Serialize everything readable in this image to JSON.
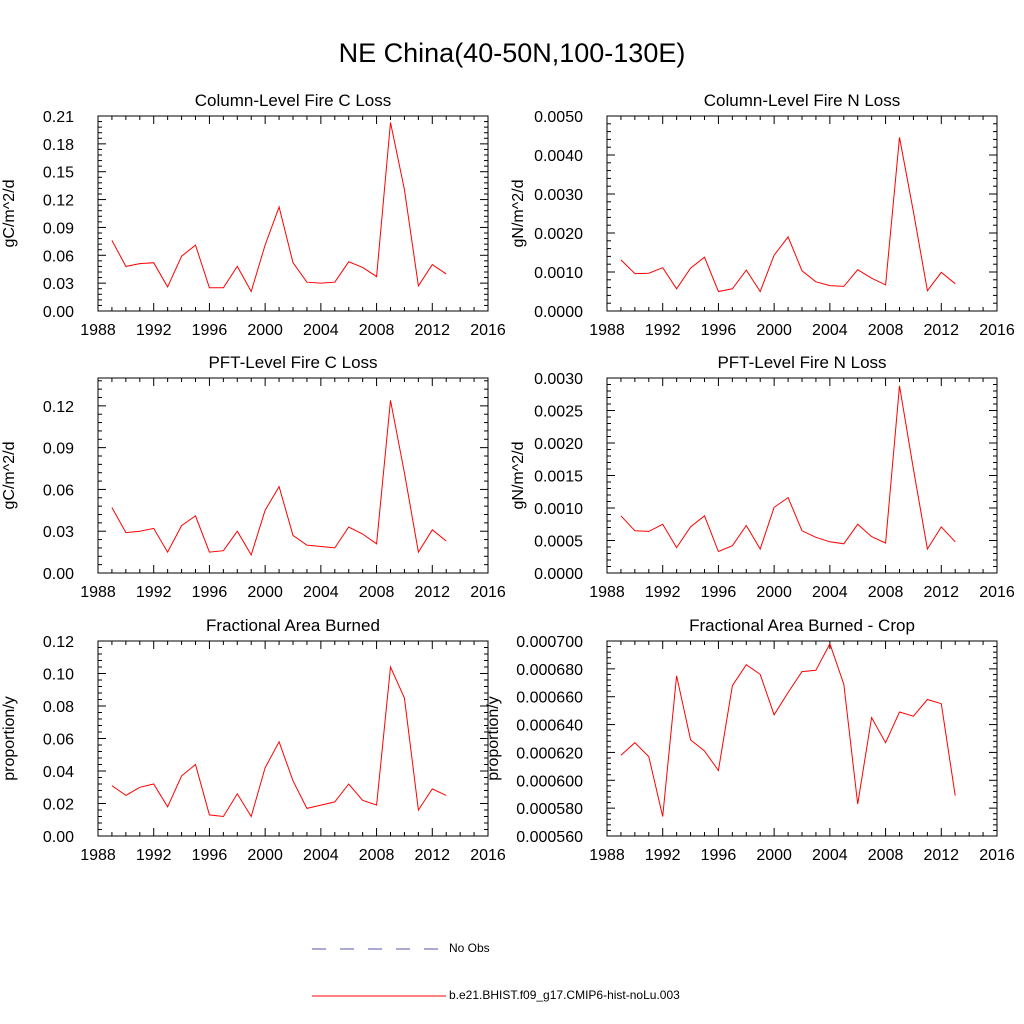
{
  "title": "NE China(40-50N,100-130E)",
  "colors": {
    "model": "#ff0000",
    "obs": "#5555aa",
    "axis": "#000000"
  },
  "legend": [
    {
      "label": "No Obs",
      "style": "dashed",
      "color": "#5555aa"
    },
    {
      "label": "b.e21.BHIST.f09_g17.CMIP6-hist-noLu.003",
      "style": "solid",
      "color": "#ff0000"
    }
  ],
  "chart_data": [
    {
      "type": "line",
      "title": "Column-Level Fire C Loss",
      "ylabel": "gC/m^2/d",
      "xlim": [
        1988,
        2016
      ],
      "xticks": [
        "1988",
        "1992",
        "1996",
        "2000",
        "2004",
        "2008",
        "2012",
        "2016"
      ],
      "ylim": [
        0,
        0.21
      ],
      "yticks": [
        "0.00",
        "0.03",
        "0.06",
        "0.09",
        "0.12",
        "0.15",
        "0.18",
        "0.21"
      ],
      "series": [
        {
          "name": "b.e21.BHIST.f09_g17.CMIP6-hist-noLu.003",
          "x": [
            1989,
            1990,
            1991,
            1992,
            1993,
            1994,
            1995,
            1996,
            1997,
            1998,
            1999,
            2000,
            2001,
            2002,
            2003,
            2004,
            2005,
            2006,
            2007,
            2008,
            2009,
            2010,
            2011,
            2012,
            2013
          ],
          "y": [
            0.076,
            0.048,
            0.051,
            0.052,
            0.026,
            0.059,
            0.071,
            0.025,
            0.025,
            0.048,
            0.021,
            0.071,
            0.112,
            0.052,
            0.031,
            0.03,
            0.031,
            0.053,
            0.047,
            0.037,
            0.203,
            0.131,
            0.027,
            0.05,
            0.04
          ]
        }
      ]
    },
    {
      "type": "line",
      "title": "Column-Level Fire N Loss",
      "ylabel": "gN/m^2/d",
      "xlim": [
        1988,
        2016
      ],
      "xticks": [
        "1988",
        "1992",
        "1996",
        "2000",
        "2004",
        "2008",
        "2012",
        "2016"
      ],
      "ylim": [
        0,
        0.005
      ],
      "yticks": [
        "0.0000",
        "0.0010",
        "0.0020",
        "0.0030",
        "0.0040",
        "0.0050"
      ],
      "series": [
        {
          "name": "b.e21.BHIST.f09_g17.CMIP6-hist-noLu.003",
          "x": [
            1989,
            1990,
            1991,
            1992,
            1993,
            1994,
            1995,
            1996,
            1997,
            1998,
            1999,
            2000,
            2001,
            2002,
            2003,
            2004,
            2005,
            2006,
            2007,
            2008,
            2009,
            2010,
            2011,
            2012,
            2013
          ],
          "y": [
            0.00131,
            0.00096,
            0.00097,
            0.00111,
            0.00057,
            0.0011,
            0.00138,
            0.0005,
            0.00057,
            0.00105,
            0.0005,
            0.00143,
            0.0019,
            0.00103,
            0.00075,
            0.00065,
            0.00063,
            0.00106,
            0.00084,
            0.00067,
            0.00445,
            0.00255,
            0.00052,
            0.00099,
            0.0007
          ]
        }
      ]
    },
    {
      "type": "line",
      "title": "PFT-Level Fire C Loss",
      "ylabel": "gC/m^2/d",
      "xlim": [
        1988,
        2016
      ],
      "xticks": [
        "1988",
        "1992",
        "1996",
        "2000",
        "2004",
        "2008",
        "2012",
        "2016"
      ],
      "ylim": [
        0,
        0.14
      ],
      "yticks": [
        "0.00",
        "0.03",
        "0.06",
        "0.09",
        "0.12"
      ],
      "series": [
        {
          "name": "b.e21.BHIST.f09_g17.CMIP6-hist-noLu.003",
          "x": [
            1989,
            1990,
            1991,
            1992,
            1993,
            1994,
            1995,
            1996,
            1997,
            1998,
            1999,
            2000,
            2001,
            2002,
            2003,
            2004,
            2005,
            2006,
            2007,
            2008,
            2009,
            2010,
            2011,
            2012,
            2013
          ],
          "y": [
            0.047,
            0.029,
            0.03,
            0.032,
            0.015,
            0.034,
            0.041,
            0.015,
            0.016,
            0.03,
            0.013,
            0.045,
            0.062,
            0.027,
            0.02,
            0.019,
            0.018,
            0.033,
            0.028,
            0.021,
            0.124,
            0.072,
            0.015,
            0.031,
            0.023
          ]
        }
      ]
    },
    {
      "type": "line",
      "title": "PFT-Level Fire N Loss",
      "ylabel": "gN/m^2/d",
      "xlim": [
        1988,
        2016
      ],
      "xticks": [
        "1988",
        "1992",
        "1996",
        "2000",
        "2004",
        "2008",
        "2012",
        "2016"
      ],
      "ylim": [
        0,
        0.003
      ],
      "yticks": [
        "0.0000",
        "0.0005",
        "0.0010",
        "0.0015",
        "0.0020",
        "0.0025",
        "0.0030"
      ],
      "series": [
        {
          "name": "b.e21.BHIST.f09_g17.CMIP6-hist-noLu.003",
          "x": [
            1989,
            1990,
            1991,
            1992,
            1993,
            1994,
            1995,
            1996,
            1997,
            1998,
            1999,
            2000,
            2001,
            2002,
            2003,
            2004,
            2005,
            2006,
            2007,
            2008,
            2009,
            2010,
            2011,
            2012,
            2013
          ],
          "y": [
            0.00088,
            0.00065,
            0.00064,
            0.00075,
            0.00039,
            0.00071,
            0.00088,
            0.00033,
            0.00042,
            0.00073,
            0.00037,
            0.00101,
            0.00116,
            0.00065,
            0.00055,
            0.00048,
            0.00045,
            0.00075,
            0.00056,
            0.00046,
            0.00288,
            0.0016,
            0.00037,
            0.00071,
            0.00048
          ]
        }
      ]
    },
    {
      "type": "line",
      "title": "Fractional Area Burned",
      "ylabel": "proportion/y",
      "xlim": [
        1988,
        2016
      ],
      "xticks": [
        "1988",
        "1992",
        "1996",
        "2000",
        "2004",
        "2008",
        "2012",
        "2016"
      ],
      "ylim": [
        0,
        0.12
      ],
      "yticks": [
        "0.00",
        "0.02",
        "0.04",
        "0.06",
        "0.08",
        "0.10",
        "0.12"
      ],
      "series": [
        {
          "name": "b.e21.BHIST.f09_g17.CMIP6-hist-noLu.003",
          "x": [
            1989,
            1990,
            1991,
            1992,
            1993,
            1994,
            1995,
            1996,
            1997,
            1998,
            1999,
            2000,
            2001,
            2002,
            2003,
            2004,
            2005,
            2006,
            2007,
            2008,
            2009,
            2010,
            2011,
            2012,
            2013
          ],
          "y": [
            0.031,
            0.025,
            0.03,
            0.032,
            0.018,
            0.037,
            0.044,
            0.013,
            0.012,
            0.026,
            0.012,
            0.042,
            0.058,
            0.034,
            0.017,
            0.019,
            0.021,
            0.032,
            0.022,
            0.019,
            0.104,
            0.085,
            0.016,
            0.029,
            0.025
          ]
        }
      ]
    },
    {
      "type": "line",
      "title": "Fractional Area Burned - Crop",
      "ylabel": "proportion/y",
      "xlim": [
        1988,
        2016
      ],
      "xticks": [
        "1988",
        "1992",
        "1996",
        "2000",
        "2004",
        "2008",
        "2012",
        "2016"
      ],
      "ylim": [
        0.00056,
        0.0007
      ],
      "yticks": [
        "0.000560",
        "0.000580",
        "0.000600",
        "0.000620",
        "0.000640",
        "0.000660",
        "0.000680",
        "0.000700"
      ],
      "series": [
        {
          "name": "b.e21.BHIST.f09_g17.CMIP6-hist-noLu.003",
          "x": [
            1989,
            1990,
            1991,
            1992,
            1993,
            1994,
            1995,
            1996,
            1997,
            1998,
            1999,
            2000,
            2001,
            2002,
            2003,
            2004,
            2005,
            2006,
            2007,
            2008,
            2009,
            2010,
            2011,
            2012,
            2013
          ],
          "y": [
            0.000618,
            0.000627,
            0.000617,
            0.000574,
            0.000675,
            0.000629,
            0.000621,
            0.000607,
            0.000668,
            0.000683,
            0.000676,
            0.000647,
            0.000663,
            0.000678,
            0.000679,
            0.000698,
            0.000669,
            0.000583,
            0.000645,
            0.000627,
            0.000649,
            0.000646,
            0.000658,
            0.000655,
            0.000589
          ]
        }
      ]
    }
  ]
}
